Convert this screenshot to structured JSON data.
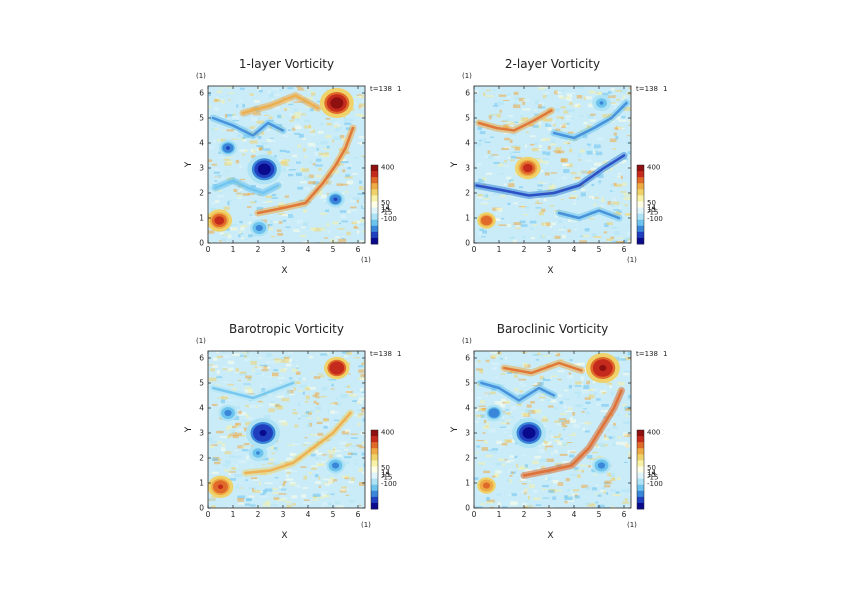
{
  "colors": {
    "scale": [
      "#0a0a8c",
      "#1f3fbf",
      "#3a86d8",
      "#6cc3ee",
      "#aee3f5",
      "#e0f4fb",
      "#ffffe8",
      "#f7f2a8",
      "#f0d26a",
      "#eeaa44",
      "#e06a2a",
      "#c42b1c",
      "#8e1010"
    ],
    "axis": "#222222"
  },
  "chart_data": [
    {
      "type": "heatmap",
      "title": "1-layer Vorticity",
      "unit_label": "(1)",
      "xlabel": "X",
      "ylabel": "Y",
      "xlim": [
        0,
        6.28
      ],
      "ylim": [
        0,
        6.28
      ],
      "xticks": [
        "0",
        "1",
        "2",
        "3",
        "4",
        "5",
        "6"
      ],
      "yticks": [
        "0",
        "1",
        "2",
        "3",
        "4",
        "5",
        "6"
      ],
      "time_label": "t=138",
      "time_unit": "1",
      "colorbar_labels": [
        "400",
        "50",
        "14",
        "15",
        "-15",
        "-100"
      ],
      "features": [
        {
          "kind": "vortex",
          "x": 2.25,
          "y": 2.95,
          "value": -400
        },
        {
          "kind": "vortex",
          "x": 5.15,
          "y": 5.6,
          "value": 400
        },
        {
          "kind": "vortex",
          "x": 0.8,
          "y": 3.8,
          "value": -150
        },
        {
          "kind": "vortex",
          "x": 0.45,
          "y": 0.9,
          "value": 200
        },
        {
          "kind": "vortex",
          "x": 5.1,
          "y": 1.75,
          "value": -150
        },
        {
          "kind": "vortex",
          "x": 2.05,
          "y": 0.6,
          "value": -100
        },
        {
          "kind": "filament",
          "points": [
            [
              2.0,
              1.2
            ],
            [
              3.0,
              1.4
            ],
            [
              3.9,
              1.6
            ],
            [
              4.6,
              2.4
            ],
            [
              5.1,
              3.1
            ],
            [
              5.5,
              3.8
            ],
            [
              5.8,
              4.6
            ]
          ],
          "value": 60
        },
        {
          "kind": "filament",
          "points": [
            [
              1.4,
              5.2
            ],
            [
              2.5,
              5.5
            ],
            [
              3.5,
              5.9
            ],
            [
              4.4,
              5.4
            ]
          ],
          "value": 40
        },
        {
          "kind": "filament",
          "points": [
            [
              0.2,
              5.0
            ],
            [
              1.0,
              4.7
            ],
            [
              1.8,
              4.3
            ],
            [
              2.4,
              4.8
            ],
            [
              3.0,
              4.5
            ]
          ],
          "value": -60
        },
        {
          "kind": "filament",
          "points": [
            [
              0.3,
              2.2
            ],
            [
              1.0,
              2.5
            ],
            [
              1.6,
              2.2
            ],
            [
              2.2,
              2.0
            ],
            [
              2.8,
              2.3
            ]
          ],
          "value": -40
        }
      ]
    },
    {
      "type": "heatmap",
      "title": "2-layer Vorticity",
      "unit_label": "(1)",
      "xlabel": "X",
      "ylabel": "Y",
      "xlim": [
        0,
        6.28
      ],
      "ylim": [
        0,
        6.28
      ],
      "xticks": [
        "0",
        "1",
        "2",
        "3",
        "4",
        "5",
        "6"
      ],
      "yticks": [
        "0",
        "1",
        "2",
        "3",
        "4",
        "5",
        "6"
      ],
      "time_label": "t=138",
      "time_unit": "1",
      "colorbar_labels": [
        "400",
        "50",
        "14",
        "15",
        "-15",
        "-100"
      ],
      "features": [
        {
          "kind": "vortex",
          "x": 2.15,
          "y": 3.0,
          "value": 250
        },
        {
          "kind": "vortex",
          "x": 5.1,
          "y": 5.6,
          "value": -80
        },
        {
          "kind": "vortex",
          "x": 0.5,
          "y": 0.9,
          "value": 150
        },
        {
          "kind": "filament",
          "points": [
            [
              0.1,
              2.3
            ],
            [
              1.2,
              2.1
            ],
            [
              2.2,
              1.9
            ],
            [
              3.2,
              2.0
            ],
            [
              4.2,
              2.3
            ],
            [
              5.2,
              3.0
            ],
            [
              6.0,
              3.5
            ]
          ],
          "value": -120
        },
        {
          "kind": "filament",
          "points": [
            [
              0.2,
              4.8
            ],
            [
              0.9,
              4.6
            ],
            [
              1.6,
              4.5
            ],
            [
              2.4,
              4.9
            ],
            [
              3.1,
              5.3
            ]
          ],
          "value": 60
        },
        {
          "kind": "filament",
          "points": [
            [
              3.2,
              4.4
            ],
            [
              4.0,
              4.2
            ],
            [
              4.8,
              4.6
            ],
            [
              5.5,
              5.0
            ],
            [
              6.1,
              5.6
            ]
          ],
          "value": -70
        },
        {
          "kind": "filament",
          "points": [
            [
              3.4,
              1.2
            ],
            [
              4.2,
              1.0
            ],
            [
              5.0,
              1.3
            ],
            [
              5.8,
              1.0
            ]
          ],
          "value": -50
        }
      ]
    },
    {
      "type": "heatmap",
      "title": "Barotropic Vorticity",
      "unit_label": "(1)",
      "xlabel": "X",
      "ylabel": "Y",
      "xlim": [
        0,
        6.28
      ],
      "ylim": [
        0,
        6.28
      ],
      "xticks": [
        "0",
        "1",
        "2",
        "3",
        "4",
        "5",
        "6"
      ],
      "yticks": [
        "0",
        "1",
        "2",
        "3",
        "4",
        "5",
        "6"
      ],
      "time_label": "t=138",
      "time_unit": "1",
      "colorbar_labels": [
        "400",
        "50",
        "14",
        "15",
        "-15",
        "-100"
      ],
      "features": [
        {
          "kind": "vortex",
          "x": 2.2,
          "y": 3.0,
          "value": -350
        },
        {
          "kind": "vortex",
          "x": 5.15,
          "y": 5.6,
          "value": 300
        },
        {
          "kind": "vortex",
          "x": 0.8,
          "y": 3.8,
          "value": -120
        },
        {
          "kind": "vortex",
          "x": 0.5,
          "y": 0.85,
          "value": 180
        },
        {
          "kind": "vortex",
          "x": 5.1,
          "y": 1.7,
          "value": -120
        },
        {
          "kind": "vortex",
          "x": 2.0,
          "y": 2.2,
          "value": -80
        },
        {
          "kind": "filament",
          "points": [
            [
              1.5,
              1.4
            ],
            [
              2.5,
              1.5
            ],
            [
              3.4,
              1.8
            ],
            [
              4.2,
              2.4
            ],
            [
              5.0,
              3.0
            ],
            [
              5.7,
              3.8
            ]
          ],
          "value": 25
        },
        {
          "kind": "filament",
          "points": [
            [
              0.2,
              4.8
            ],
            [
              1.0,
              4.6
            ],
            [
              1.8,
              4.4
            ],
            [
              2.6,
              4.7
            ],
            [
              3.4,
              5.0
            ]
          ],
          "value": -30
        }
      ]
    },
    {
      "type": "heatmap",
      "title": "Baroclinic Vorticity",
      "unit_label": "(1)",
      "xlabel": "X",
      "ylabel": "Y",
      "xlim": [
        0,
        6.28
      ],
      "ylim": [
        0,
        6.28
      ],
      "xticks": [
        "0",
        "1",
        "2",
        "3",
        "4",
        "5",
        "6"
      ],
      "yticks": [
        "0",
        "1",
        "2",
        "3",
        "4",
        "5",
        "6"
      ],
      "time_label": "t=138",
      "time_unit": "1",
      "colorbar_labels": [
        "400",
        "50",
        "14",
        "15",
        "-15",
        "-100"
      ],
      "features": [
        {
          "kind": "vortex",
          "x": 2.2,
          "y": 3.0,
          "value": -400
        },
        {
          "kind": "vortex",
          "x": 5.15,
          "y": 5.6,
          "value": 380
        },
        {
          "kind": "vortex",
          "x": 0.8,
          "y": 3.8,
          "value": -140
        },
        {
          "kind": "vortex",
          "x": 0.5,
          "y": 0.9,
          "value": 120
        },
        {
          "kind": "vortex",
          "x": 5.1,
          "y": 1.7,
          "value": -130
        },
        {
          "kind": "filament",
          "points": [
            [
              2.0,
              1.3
            ],
            [
              3.0,
              1.5
            ],
            [
              3.9,
              1.7
            ],
            [
              4.6,
              2.4
            ],
            [
              5.1,
              3.2
            ],
            [
              5.6,
              4.0
            ],
            [
              5.9,
              4.7
            ]
          ],
          "value": 80
        },
        {
          "kind": "filament",
          "points": [
            [
              0.3,
              5.0
            ],
            [
              1.0,
              4.8
            ],
            [
              1.8,
              4.3
            ],
            [
              2.6,
              4.8
            ],
            [
              3.2,
              4.5
            ]
          ],
          "value": -70
        },
        {
          "kind": "filament",
          "points": [
            [
              1.2,
              5.6
            ],
            [
              2.3,
              5.4
            ],
            [
              3.4,
              5.8
            ],
            [
              4.3,
              5.5
            ]
          ],
          "value": 45
        }
      ]
    }
  ]
}
